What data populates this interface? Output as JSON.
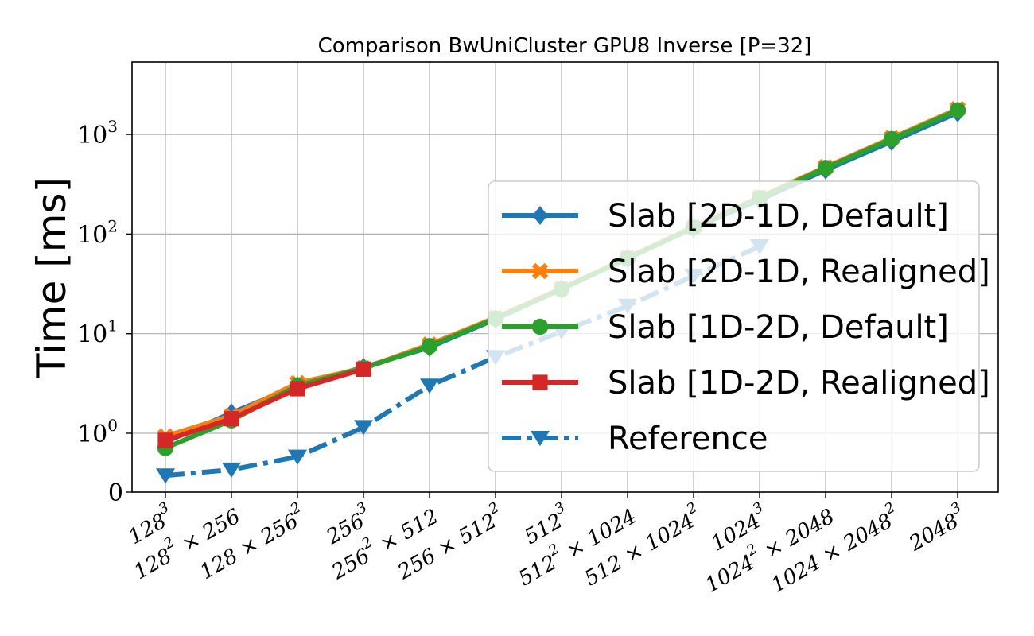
{
  "chart_data": {
    "type": "line",
    "title": "Comparison BwUniCluster GPU8 Inverse [P=32]",
    "xlabel": "",
    "ylabel": "Time [ms]",
    "yscale": "symlog",
    "ylim": [
      0,
      2500
    ],
    "yticks": [
      {
        "value": 0,
        "base": "0",
        "exp": ""
      },
      {
        "value": 1,
        "base": "10",
        "exp": "0"
      },
      {
        "value": 10,
        "base": "10",
        "exp": "1"
      },
      {
        "value": 100,
        "base": "10",
        "exp": "2"
      },
      {
        "value": 1000,
        "base": "10",
        "exp": "3"
      }
    ],
    "categories": [
      "128^3",
      "128^2 × 256",
      "128 × 256^2",
      "256^3",
      "256^2 × 512",
      "256 × 512^2",
      "512^3",
      "512^2 × 1024",
      "512 × 1024^2",
      "1024^3",
      "1024^2 × 2048",
      "1024 × 2048^2",
      "2048^3"
    ],
    "xtick_parts": [
      {
        "a": "128",
        "ae": "3",
        "op": "",
        "b": "",
        "be": ""
      },
      {
        "a": "128",
        "ae": "2",
        "op": " × ",
        "b": "256",
        "be": ""
      },
      {
        "a": "128",
        "ae": "",
        "op": " × ",
        "b": "256",
        "be": "2"
      },
      {
        "a": "256",
        "ae": "3",
        "op": "",
        "b": "",
        "be": ""
      },
      {
        "a": "256",
        "ae": "2",
        "op": " × ",
        "b": "512",
        "be": ""
      },
      {
        "a": "256",
        "ae": "",
        "op": " × ",
        "b": "512",
        "be": "2"
      },
      {
        "a": "512",
        "ae": "3",
        "op": "",
        "b": "",
        "be": ""
      },
      {
        "a": "512",
        "ae": "2",
        "op": " × ",
        "b": "1024",
        "be": ""
      },
      {
        "a": "512",
        "ae": "",
        "op": " × ",
        "b": "1024",
        "be": "2"
      },
      {
        "a": "1024",
        "ae": "3",
        "op": "",
        "b": "",
        "be": ""
      },
      {
        "a": "1024",
        "ae": "2",
        "op": " × ",
        "b": "2048",
        "be": ""
      },
      {
        "a": "1024",
        "ae": "",
        "op": " × ",
        "b": "2048",
        "be": "2"
      },
      {
        "a": "2048",
        "ae": "3",
        "op": "",
        "b": "",
        "be": ""
      }
    ],
    "grid": true,
    "legend_position": "right",
    "series": [
      {
        "name": "Slab [2D-1D, Default]",
        "color": "#1f77b4",
        "marker": "diamond",
        "dash": "solid",
        "values": [
          0.85,
          1.6,
          3.0,
          4.6,
          7.3,
          14.0,
          28.0,
          57.0,
          115.0,
          220.0,
          440.0,
          850.0,
          1650.0
        ]
      },
      {
        "name": "Slab [2D-1D, Realigned]",
        "color": "#ff7f0e",
        "marker": "x",
        "dash": "solid",
        "values": [
          0.95,
          1.5,
          3.2,
          4.5,
          7.8,
          14.5,
          28.5,
          58.0,
          118.0,
          235.0,
          470.0,
          920.0,
          1800.0
        ]
      },
      {
        "name": "Slab [1D-2D, Default]",
        "color": "#2ca02c",
        "marker": "circle",
        "dash": "solid",
        "values": [
          0.75,
          1.35,
          3.0,
          4.5,
          7.5,
          14.2,
          28.0,
          57.0,
          116.0,
          230.0,
          460.0,
          900.0,
          1750.0
        ]
      },
      {
        "name": "Slab [1D-2D, Realigned]",
        "color": "#d62728",
        "marker": "square",
        "dash": "solid",
        "values": [
          0.88,
          1.4,
          2.8,
          4.4,
          null,
          null,
          null,
          null,
          null,
          null,
          null,
          null,
          null
        ]
      },
      {
        "name": "Reference",
        "color": "#1f77b4",
        "marker": "triangle-down",
        "dash": "dashdot",
        "values": [
          0.28,
          0.38,
          0.6,
          1.15,
          3.0,
          5.8,
          10.5,
          19.0,
          38.0,
          75.0,
          null,
          null,
          null
        ]
      }
    ]
  }
}
